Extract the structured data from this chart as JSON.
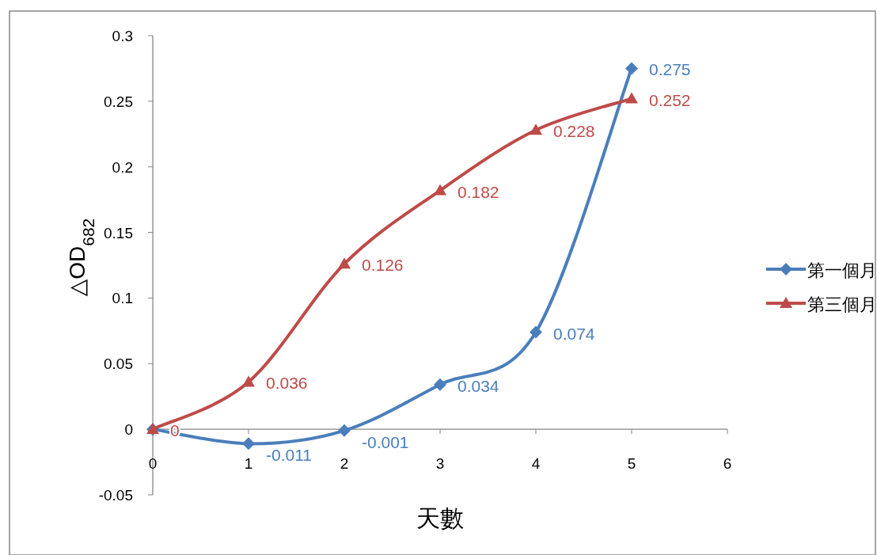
{
  "chart_data": {
    "type": "line",
    "xlabel": "天數",
    "ylabel": "△OD$_{682}$",
    "x": [
      0,
      1,
      2,
      3,
      4,
      5
    ],
    "series": [
      {
        "name": "第一個月",
        "color": "#4a7ebb",
        "marker": "diamond",
        "values": [
          0,
          -0.011,
          -0.001,
          0.034,
          0.074,
          0.275
        ],
        "value_labels": [
          null,
          "-0.011",
          "-0.001",
          "0.034",
          "0.074",
          "0.275"
        ]
      },
      {
        "name": "第三個月",
        "color": "#be4b48",
        "marker": "triangle",
        "values": [
          0,
          0.036,
          0.126,
          0.182,
          0.228,
          0.252
        ],
        "value_labels": [
          "0",
          "0.036",
          "0.126",
          "0.182",
          "0.228",
          "0.252"
        ]
      }
    ],
    "xlim": [
      0,
      6
    ],
    "xticks": [
      0,
      1,
      2,
      3,
      4,
      5,
      6
    ],
    "ylim": [
      -0.05,
      0.3
    ],
    "yticks": [
      -0.05,
      0,
      0.05,
      0.1,
      0.15,
      0.2,
      0.25,
      0.3
    ],
    "legend": "right",
    "grid": false,
    "line_style": "solid"
  }
}
